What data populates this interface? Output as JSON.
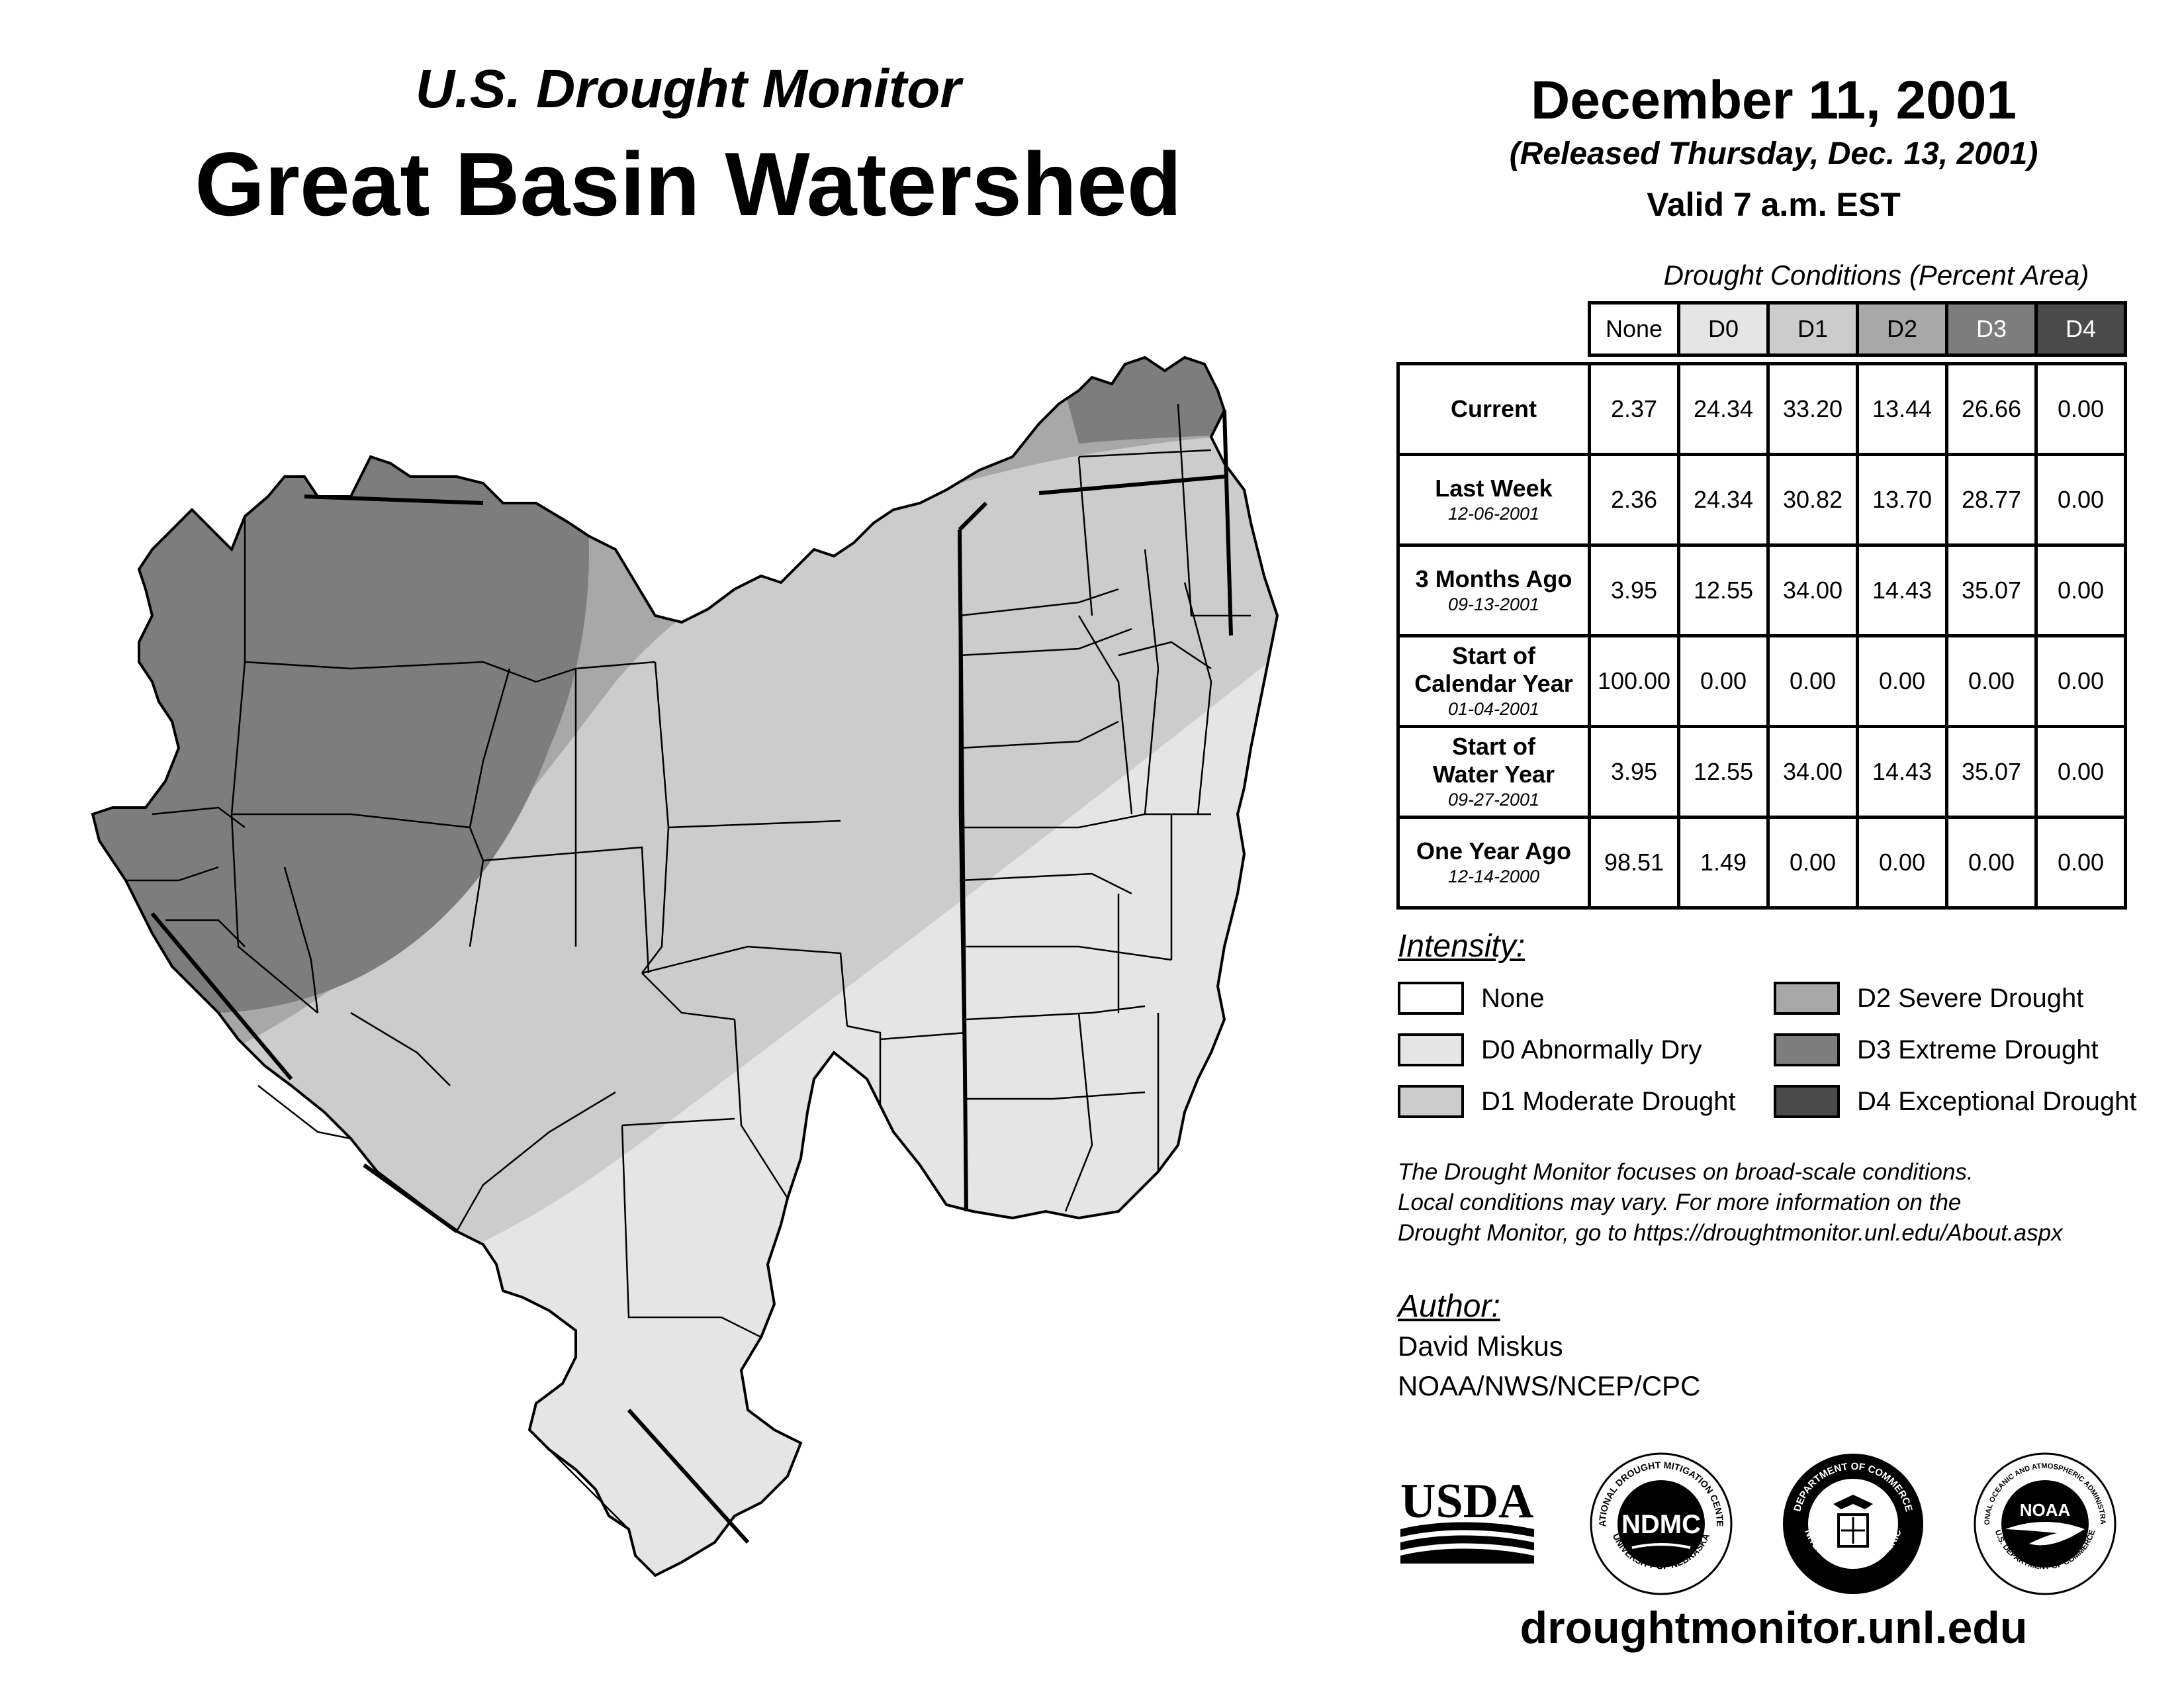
{
  "header": {
    "monitor_title": "U.S. Drought Monitor",
    "region_title": "Great Basin Watershed",
    "map_date": "December 11, 2001",
    "released": "(Released Thursday, Dec. 13, 2001)",
    "valid": "Valid 7 a.m. EST"
  },
  "table": {
    "caption": "Drought Conditions (Percent Area)",
    "columns": [
      "None",
      "D0",
      "D1",
      "D2",
      "D3",
      "D4"
    ],
    "rows": [
      {
        "label": "Current",
        "date": "",
        "values": [
          "2.37",
          "24.34",
          "33.20",
          "13.44",
          "26.66",
          "0.00"
        ]
      },
      {
        "label": "Last Week",
        "date": "12-06-2001",
        "values": [
          "2.36",
          "24.34",
          "30.82",
          "13.70",
          "28.77",
          "0.00"
        ]
      },
      {
        "label": "3 Months Ago",
        "date": "09-13-2001",
        "values": [
          "3.95",
          "12.55",
          "34.00",
          "14.43",
          "35.07",
          "0.00"
        ]
      },
      {
        "label_line1": "Start of",
        "label_line2": "Calendar Year",
        "date": "01-04-2001",
        "values": [
          "100.00",
          "0.00",
          "0.00",
          "0.00",
          "0.00",
          "0.00"
        ]
      },
      {
        "label_line1": "Start of",
        "label_line2": "Water Year",
        "date": "09-27-2001",
        "values": [
          "3.95",
          "12.55",
          "34.00",
          "14.43",
          "35.07",
          "0.00"
        ]
      },
      {
        "label": "One Year Ago",
        "date": "12-14-2000",
        "values": [
          "98.51",
          "1.49",
          "0.00",
          "0.00",
          "0.00",
          "0.00"
        ]
      }
    ]
  },
  "legend": {
    "title": "Intensity:",
    "items": [
      {
        "label": "None",
        "color": "#ffffff"
      },
      {
        "label": "D0 Abnormally Dry",
        "color": "#e5e5e5"
      },
      {
        "label": "D1 Moderate Drought",
        "color": "#cccccc"
      },
      {
        "label": "D2 Severe Drought",
        "color": "#a8a8a8"
      },
      {
        "label": "D3 Extreme Drought",
        "color": "#7d7d7d"
      },
      {
        "label": "D4 Exceptional Drought",
        "color": "#4a4a4a"
      }
    ]
  },
  "note": {
    "line1": "The Drought Monitor focuses on broad-scale conditions.",
    "line2": "Local conditions may vary. For more information on the",
    "line3": "Drought Monitor, go to https://droughtmonitor.unl.edu/About.aspx"
  },
  "author": {
    "title": "Author:",
    "name": "David Miskus",
    "org": "NOAA/NWS/NCEP/CPC"
  },
  "logos": {
    "usda": "USDA",
    "ndmc": "NDMC",
    "ndmc_ring_top": "NATIONAL DROUGHT MITIGATION CENTER",
    "ndmc_ring_bottom": "UNIVERSITY OF NEBRASKA",
    "doc_ring_top": "DEPARTMENT OF COMMERCE",
    "doc_ring_bottom": "UNITED STATES OF AMERICA",
    "noaa": "NOAA",
    "noaa_ring_top": "NATIONAL OCEANIC AND ATMOSPHERIC ADMINISTRATION",
    "noaa_ring_bottom": "U.S. DEPARTMENT OF COMMERCE"
  },
  "site_url": "droughtmonitor.unl.edu",
  "colors": {
    "none": "#ffffff",
    "d0": "#e5e5e5",
    "d1": "#cccccc",
    "d2": "#a8a8a8",
    "d3": "#7d7d7d",
    "d4": "#4a4a4a"
  }
}
